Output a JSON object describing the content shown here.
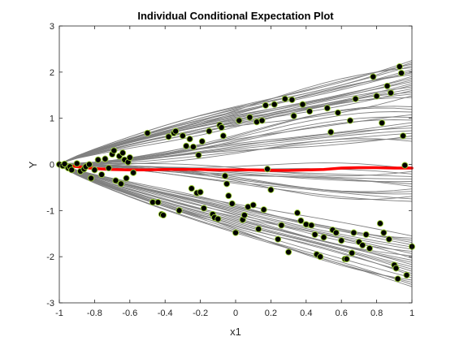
{
  "chart_data": {
    "type": "line",
    "title": "Individual Conditional Expectation Plot",
    "xlabel": "x1",
    "ylabel": "Y",
    "xlim": [
      -1,
      1
    ],
    "ylim": [
      -3,
      3
    ],
    "xticks": [
      "-1",
      "-0.8",
      "-0.6",
      "-0.4",
      "-0.2",
      "0",
      "0.2",
      "0.4",
      "0.6",
      "0.8",
      "1"
    ],
    "yticks": [
      "-3",
      "-2",
      "-1",
      "0",
      "1",
      "2",
      "3"
    ],
    "grid": false,
    "legend": "none",
    "colors": {
      "ice_lines": "#808080",
      "average_line": "#ff0000",
      "observation_fill": "#000000",
      "observation_edge": "#9acd32",
      "axes": "#262626"
    },
    "ice_x": [
      -1,
      -0.9,
      -0.8,
      -0.7,
      -0.6,
      -0.5,
      -0.4,
      -0.3,
      -0.2,
      -0.1,
      0,
      0.1,
      0.2,
      0.3,
      0.4,
      0.5,
      0.6,
      0.7,
      0.8,
      0.9,
      1
    ],
    "ice_bundles": [
      {
        "y_start": [
          0.02,
          0.01
        ],
        "y_end": [
          1.45,
          2.25
        ],
        "shape": "upper"
      },
      {
        "y_start": [
          -0.02,
          0.02
        ],
        "y_end": [
          0.5,
          1.25
        ],
        "shape": "upper_mid"
      },
      {
        "y_start": [
          -0.02,
          0.01
        ],
        "y_end": [
          -0.8,
          -0.1
        ],
        "shape": "lower_mid"
      },
      {
        "y_start": [
          -0.03,
          0.0
        ],
        "y_end": [
          -2.65,
          -1.55
        ],
        "shape": "lower"
      }
    ],
    "average_curve": {
      "x": [
        -1,
        -0.9,
        -0.8,
        -0.7,
        -0.6,
        -0.5,
        -0.4,
        -0.3,
        -0.2,
        -0.1,
        0,
        0.1,
        0.2,
        0.3,
        0.4,
        0.5,
        0.6,
        0.7,
        0.8,
        0.9,
        1
      ],
      "y": [
        0.0,
        -0.05,
        -0.09,
        -0.11,
        -0.12,
        -0.12,
        -0.11,
        -0.11,
        -0.11,
        -0.12,
        -0.12,
        -0.12,
        -0.13,
        -0.13,
        -0.12,
        -0.11,
        -0.08,
        -0.07,
        -0.07,
        -0.08,
        -0.08
      ]
    },
    "observations": [
      [
        -1.0,
        0.0
      ],
      [
        -0.98,
        -0.03
      ],
      [
        -0.97,
        0.01
      ],
      [
        -0.95,
        -0.08
      ],
      [
        -0.94,
        -0.05
      ],
      [
        -0.93,
        -0.12
      ],
      [
        -0.9,
        0.02
      ],
      [
        -0.88,
        -0.15
      ],
      [
        -0.86,
        -0.1
      ],
      [
        -0.85,
        -0.05
      ],
      [
        -0.83,
        0.0
      ],
      [
        -0.82,
        -0.3
      ],
      [
        -0.8,
        -0.12
      ],
      [
        -0.78,
        0.1
      ],
      [
        -0.76,
        -0.22
      ],
      [
        -0.74,
        0.12
      ],
      [
        -0.72,
        -0.08
      ],
      [
        -0.7,
        0.22
      ],
      [
        -0.69,
        0.3
      ],
      [
        -0.68,
        -0.35
      ],
      [
        -0.66,
        0.18
      ],
      [
        -0.65,
        -0.42
      ],
      [
        -0.64,
        0.25
      ],
      [
        -0.63,
        0.1
      ],
      [
        -0.62,
        -0.3
      ],
      [
        -0.61,
        0.05
      ],
      [
        -0.6,
        0.15
      ],
      [
        -0.58,
        -0.18
      ],
      [
        -0.5,
        0.68
      ],
      [
        -0.47,
        -0.82
      ],
      [
        -0.44,
        -0.82
      ],
      [
        -0.42,
        -1.08
      ],
      [
        -0.41,
        -1.1
      ],
      [
        -0.38,
        0.6
      ],
      [
        -0.35,
        0.68
      ],
      [
        -0.34,
        0.72
      ],
      [
        -0.32,
        -1.0
      ],
      [
        -0.3,
        0.62
      ],
      [
        -0.28,
        0.4
      ],
      [
        -0.26,
        0.55
      ],
      [
        -0.25,
        -0.52
      ],
      [
        -0.24,
        0.38
      ],
      [
        -0.22,
        -0.62
      ],
      [
        -0.21,
        0.2
      ],
      [
        -0.2,
        -0.6
      ],
      [
        -0.19,
        0.5
      ],
      [
        -0.18,
        -0.95
      ],
      [
        -0.15,
        0.72
      ],
      [
        -0.13,
        -1.08
      ],
      [
        -0.12,
        -1.15
      ],
      [
        -0.1,
        -1.18
      ],
      [
        -0.09,
        0.85
      ],
      [
        -0.08,
        0.8
      ],
      [
        -0.07,
        0.62
      ],
      [
        -0.06,
        -0.25
      ],
      [
        -0.05,
        -0.42
      ],
      [
        -0.04,
        -0.68
      ],
      [
        -0.02,
        -0.85
      ],
      [
        0.0,
        -1.48
      ],
      [
        0.02,
        0.95
      ],
      [
        0.04,
        -1.2
      ],
      [
        0.05,
        -1.1
      ],
      [
        0.07,
        -0.92
      ],
      [
        0.08,
        1.02
      ],
      [
        0.1,
        -0.88
      ],
      [
        0.12,
        0.92
      ],
      [
        0.13,
        -1.4
      ],
      [
        0.15,
        0.95
      ],
      [
        0.16,
        -0.98
      ],
      [
        0.17,
        1.28
      ],
      [
        0.18,
        -0.1
      ],
      [
        0.2,
        -0.55
      ],
      [
        0.22,
        1.3
      ],
      [
        0.24,
        -1.62
      ],
      [
        0.26,
        -1.32
      ],
      [
        0.28,
        1.42
      ],
      [
        0.3,
        -1.9
      ],
      [
        0.32,
        1.4
      ],
      [
        0.33,
        1.05
      ],
      [
        0.35,
        -1.05
      ],
      [
        0.37,
        -1.22
      ],
      [
        0.38,
        1.3
      ],
      [
        0.4,
        -1.3
      ],
      [
        0.42,
        1.15
      ],
      [
        0.43,
        -1.32
      ],
      [
        0.45,
        -1.52
      ],
      [
        0.46,
        -1.95
      ],
      [
        0.48,
        -2.0
      ],
      [
        0.5,
        -1.58
      ],
      [
        0.52,
        1.22
      ],
      [
        0.54,
        0.7
      ],
      [
        0.55,
        -1.42
      ],
      [
        0.57,
        -1.48
      ],
      [
        0.58,
        1.12
      ],
      [
        0.6,
        -1.65
      ],
      [
        0.62,
        -2.05
      ],
      [
        0.63,
        -2.05
      ],
      [
        0.65,
        0.95
      ],
      [
        0.66,
        -1.92
      ],
      [
        0.67,
        -1.48
      ],
      [
        0.68,
        1.42
      ],
      [
        0.7,
        -1.68
      ],
      [
        0.72,
        -1.75
      ],
      [
        0.74,
        -1.52
      ],
      [
        0.76,
        -1.82
      ],
      [
        0.78,
        1.9
      ],
      [
        0.8,
        1.48
      ],
      [
        0.82,
        -1.28
      ],
      [
        0.83,
        0.9
      ],
      [
        0.84,
        -1.48
      ],
      [
        0.86,
        1.7
      ],
      [
        0.87,
        -1.62
      ],
      [
        0.88,
        1.55
      ],
      [
        0.9,
        -2.18
      ],
      [
        0.91,
        -2.25
      ],
      [
        0.92,
        -2.48
      ],
      [
        0.93,
        2.12
      ],
      [
        0.94,
        1.98
      ],
      [
        0.95,
        0.62
      ],
      [
        0.96,
        -0.02
      ],
      [
        0.97,
        -2.4
      ],
      [
        1.0,
        -1.78
      ]
    ]
  }
}
